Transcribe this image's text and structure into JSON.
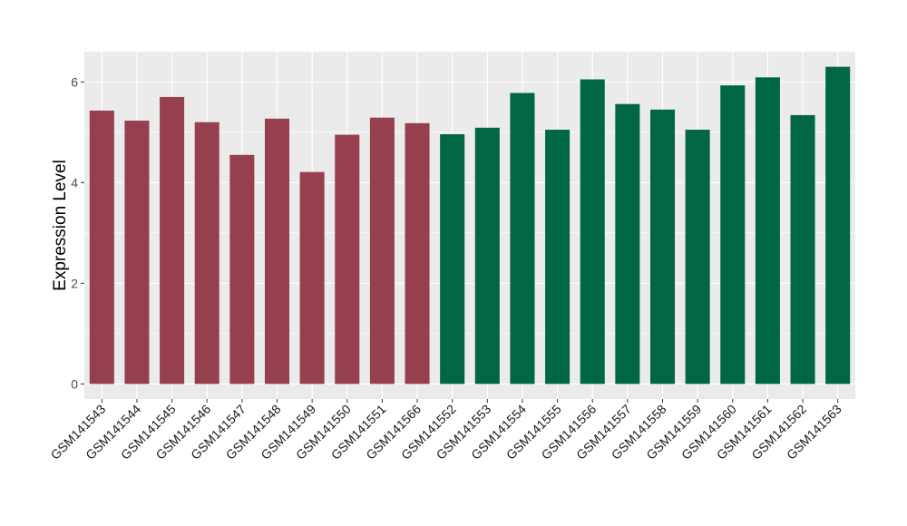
{
  "chart_data": {
    "type": "bar",
    "categories": [
      "GSM141543",
      "GSM141544",
      "GSM141545",
      "GSM141546",
      "GSM141547",
      "GSM141548",
      "GSM141549",
      "GSM141550",
      "GSM141551",
      "GSM141566",
      "GSM141552",
      "GSM141553",
      "GSM141554",
      "GSM141555",
      "GSM141556",
      "GSM141557",
      "GSM141558",
      "GSM141559",
      "GSM141560",
      "GSM141561",
      "GSM141562",
      "GSM141563"
    ],
    "values": [
      5.43,
      5.23,
      5.7,
      5.2,
      4.55,
      5.27,
      4.21,
      4.95,
      5.29,
      5.18,
      4.96,
      5.09,
      5.78,
      5.05,
      6.05,
      5.56,
      5.45,
      5.05,
      5.93,
      6.09,
      5.34,
      6.3
    ],
    "groups": [
      0,
      0,
      0,
      0,
      0,
      0,
      0,
      0,
      0,
      0,
      1,
      1,
      1,
      1,
      1,
      1,
      1,
      1,
      1,
      1,
      1,
      1
    ],
    "group_colors": [
      "#96404f",
      "#006644"
    ],
    "title": "",
    "xlabel": "",
    "ylabel": "Expression Level",
    "ylim": [
      -0.3,
      6.6
    ],
    "yticks": [
      0,
      2,
      4,
      6
    ],
    "ytick_labels": [
      "0",
      "2",
      "4",
      "6"
    ],
    "grid": true,
    "panel_background": "#ebebeb",
    "legend": "none"
  }
}
